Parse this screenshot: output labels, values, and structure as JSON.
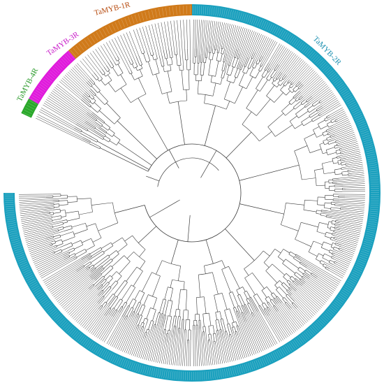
{
  "figure": {
    "clades": [
      {
        "id": "myb-1r",
        "label": "TaMYB-1R",
        "color": "#d07a1a",
        "label_color": "#b5470a",
        "leaf_count": 38
      },
      {
        "id": "myb-2r",
        "label": "TaMYB-2R",
        "color": "#1aa0be",
        "label_color": "#1a8fb0",
        "leaf_count": 410
      },
      {
        "id": "myb-3r",
        "label": "TaMYB-3R",
        "color": "#e01adc",
        "label_color": "#c81ac8",
        "leaf_count": 26
      },
      {
        "id": "myb-4r",
        "label": "TaMYB-4R",
        "color": "#2aa82a",
        "label_color": "#2a9a2a",
        "leaf_count": 6
      }
    ],
    "colors": {
      "branch": "#3a3a3a",
      "ring_text": "#f4f4f4"
    }
  }
}
